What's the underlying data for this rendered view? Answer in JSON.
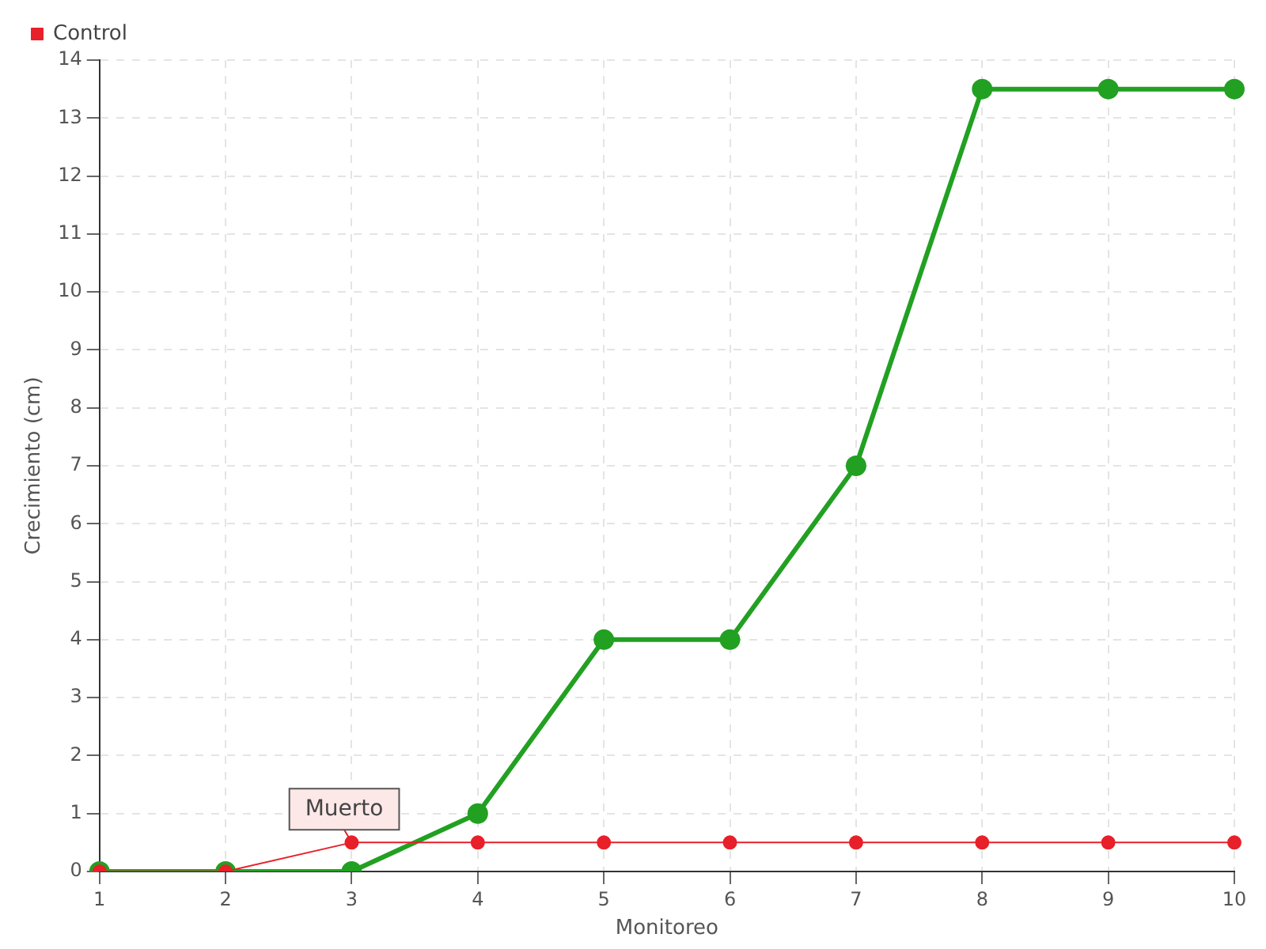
{
  "chart_data": {
    "type": "line",
    "xlabel": "Monitoreo",
    "ylabel": "Crecimiento (cm)",
    "categories": [
      "1",
      "2",
      "3",
      "4",
      "5",
      "6",
      "7",
      "8",
      "9",
      "10"
    ],
    "series": [
      {
        "color": "#22a022",
        "values": [
          0,
          0,
          0,
          1,
          4,
          4,
          7,
          13.5,
          13.5,
          13.5
        ]
      },
      {
        "name": "Control",
        "color": "#e8202a",
        "values": [
          0,
          0,
          0.5,
          0.5,
          0.5,
          0.5,
          0.5,
          0.5,
          0.5,
          0.5
        ]
      }
    ],
    "ylim": [
      0,
      14
    ],
    "yticks": [
      0,
      1,
      2,
      3,
      4,
      5,
      6,
      7,
      8,
      9,
      10,
      11,
      12,
      13,
      14
    ],
    "grid": true,
    "legend": "top left",
    "marker": "circle",
    "annotations": [
      {
        "text": "Muerto",
        "x": "3",
        "y": 0.5
      }
    ]
  }
}
